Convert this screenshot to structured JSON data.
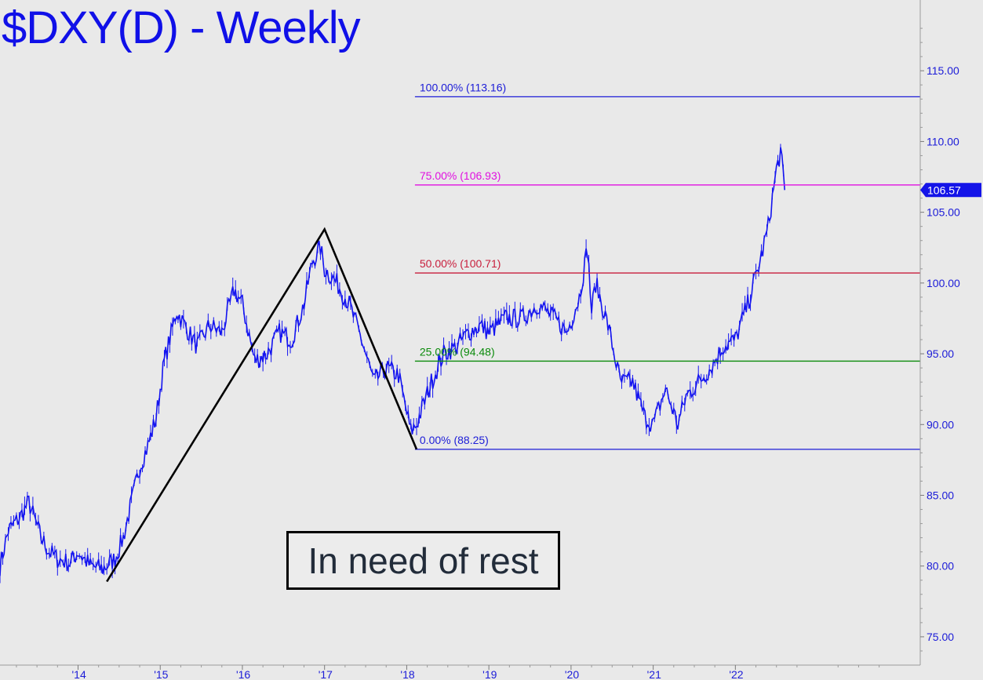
{
  "chart_data": {
    "type": "line",
    "title": "$DXY(D) - Weekly",
    "annotation": "In need of rest",
    "last_price_label": "106.57",
    "last_price": 106.57,
    "y_range": [
      73,
      120
    ],
    "y_ticks": [
      "75.00",
      "80.00",
      "85.00",
      "90.00",
      "95.00",
      "100.00",
      "105.00",
      "110.00",
      "115.00"
    ],
    "y_tick_values": [
      75,
      80,
      85,
      90,
      95,
      100,
      105,
      110,
      115
    ],
    "x_ticks": [
      "'14",
      "'15",
      "'16",
      "'17",
      "'18",
      "'19",
      "'20",
      "'21",
      "'22"
    ],
    "x_tick_years": [
      2014,
      2015,
      2016,
      2017,
      2018,
      2019,
      2020,
      2021,
      2022
    ],
    "x_range": [
      2013.05,
      2024.25
    ],
    "series": [
      {
        "values_x": [
          2013.05,
          2013.15,
          2013.3,
          2013.4,
          2013.55,
          2013.65,
          2013.75,
          2013.9,
          2014.0,
          2014.15,
          2014.3,
          2014.45,
          2014.55,
          2014.65,
          2014.75,
          2014.85,
          2014.95,
          2015.05,
          2015.2,
          2015.3,
          2015.45,
          2015.6,
          2015.75,
          2015.9,
          2016.0,
          2016.15,
          2016.3,
          2016.45,
          2016.6,
          2016.75,
          2016.85,
          2016.95,
          2017.0,
          2017.15,
          2017.3,
          2017.45,
          2017.6,
          2017.75,
          2017.9,
          2018.05,
          2018.12,
          2018.3,
          2018.45,
          2018.6,
          2018.75,
          2018.9,
          2019.0,
          2019.2,
          2019.4,
          2019.6,
          2019.8,
          2019.95,
          2020.1,
          2020.2,
          2020.25,
          2020.3,
          2020.45,
          2020.6,
          2020.75,
          2020.9,
          2021.0,
          2021.15,
          2021.3,
          2021.4,
          2021.55,
          2021.7,
          2021.85,
          2022.0,
          2022.15,
          2022.3,
          2022.4,
          2022.5,
          2022.55,
          2022.6
        ],
        "values_y": [
          80.0,
          82.5,
          83.5,
          84.5,
          82.0,
          81.0,
          80.5,
          80.2,
          81.0,
          80.0,
          79.8,
          80.5,
          82.0,
          84.5,
          87.0,
          88.5,
          90.5,
          94.5,
          98.0,
          97.0,
          95.5,
          97.0,
          96.5,
          99.5,
          98.5,
          94.5,
          95.0,
          96.5,
          96.0,
          98.5,
          101.5,
          102.5,
          101.0,
          100.0,
          98.5,
          96.0,
          93.0,
          94.0,
          93.5,
          89.5,
          90.0,
          93.0,
          95.0,
          95.5,
          96.5,
          97.0,
          96.5,
          97.5,
          97.5,
          98.5,
          97.5,
          96.5,
          99.0,
          102.5,
          98.0,
          100.0,
          97.0,
          93.0,
          93.0,
          90.5,
          90.0,
          92.5,
          90.0,
          92.0,
          93.0,
          94.0,
          95.5,
          96.0,
          98.5,
          101.5,
          104.0,
          108.0,
          109.3,
          106.57
        ]
      }
    ],
    "fib_levels": [
      {
        "label": "100.00% (113.16)",
        "value": 113.16,
        "color": "#1c1cd8"
      },
      {
        "label": "75.00% (106.93)",
        "value": 106.93,
        "color": "#e010e0"
      },
      {
        "label": "50.00% (100.71)",
        "value": 100.71,
        "color": "#c81e3c"
      },
      {
        "label": "25.00% (94.48)",
        "value": 94.48,
        "color": "#0a8a0a"
      },
      {
        "label": "0.00% (88.25)",
        "value": 88.25,
        "color": "#1c1cd8"
      }
    ],
    "fib_start_year": 2018.1,
    "abc_pattern": {
      "x": [
        2014.35,
        2017.0,
        2018.12
      ],
      "y": [
        78.9,
        103.8,
        88.25
      ]
    },
    "colors": {
      "background": "#e9e9e9",
      "price": "#1414f0",
      "title": "#1010e8",
      "axis_text": "#1c1cd8"
    }
  }
}
